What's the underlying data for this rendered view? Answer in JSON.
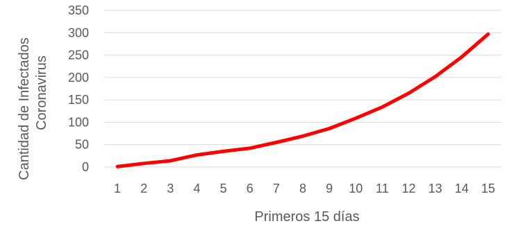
{
  "chart_data": {
    "type": "line",
    "title": "",
    "xlabel": "Primeros 15 días",
    "ylabel_lines": [
      "Cantidad de Infectados",
      "Coronavirus"
    ],
    "categories": [
      "1",
      "2",
      "3",
      "4",
      "5",
      "6",
      "7",
      "8",
      "9",
      "10",
      "11",
      "12",
      "13",
      "14",
      "15"
    ],
    "series": [
      {
        "values": [
          1,
          8,
          14,
          27,
          35,
          42,
          55,
          69,
          86,
          109,
          134,
          165,
          202,
          246,
          297
        ]
      }
    ],
    "ylim": [
      0,
      350
    ],
    "yticks": [
      0,
      50,
      100,
      150,
      200,
      250,
      300,
      350
    ],
    "grid": true,
    "legend": "none",
    "colors": {
      "line": "#ff0000",
      "grid": "#d9d9d9",
      "text": "#595959"
    }
  }
}
